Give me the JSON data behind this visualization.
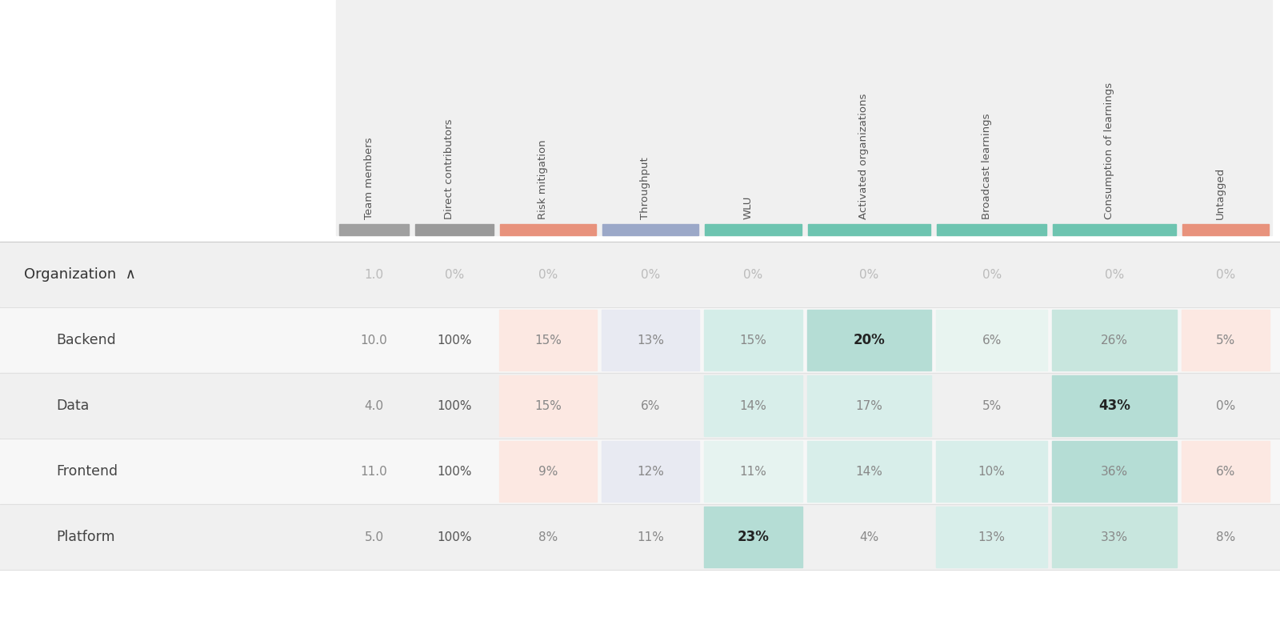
{
  "col_headers": [
    "Team members",
    "Direct contributors",
    "Risk mitigation",
    "Throughput",
    "WLU",
    "Activated organizations",
    "Broadcast learnings",
    "Consumption of learnings",
    "Untagged"
  ],
  "col_indicator_colors": [
    "#a0a0a0",
    "#9a9a9a",
    "#e8927c",
    "#9ba8c8",
    "#6dc4b0",
    "#6dc4b0",
    "#6dc4b0",
    "#6dc4b0",
    "#e8927c"
  ],
  "row_labels": [
    "Organization  ∧",
    "Backend",
    "Data",
    "Frontend",
    "Platform"
  ],
  "row_indents": [
    0,
    1,
    1,
    1,
    1
  ],
  "data": [
    [
      "1.0",
      "0%",
      "0%",
      "0%",
      "0%",
      "0%",
      "0%",
      "0%",
      "0%"
    ],
    [
      "10.0",
      "100%",
      "15%",
      "13%",
      "15%",
      "20%",
      "6%",
      "26%",
      "5%"
    ],
    [
      "4.0",
      "100%",
      "15%",
      "6%",
      "14%",
      "17%",
      "5%",
      "43%",
      "0%"
    ],
    [
      "11.0",
      "100%",
      "9%",
      "12%",
      "11%",
      "14%",
      "10%",
      "36%",
      "6%"
    ],
    [
      "5.0",
      "100%",
      "8%",
      "11%",
      "23%",
      "4%",
      "13%",
      "33%",
      "8%"
    ]
  ],
  "cell_colors": [
    [
      null,
      null,
      null,
      null,
      null,
      null,
      null,
      null,
      null
    ],
    [
      null,
      null,
      "#fce8e2",
      "#e8eaf2",
      "#d4ede8",
      "#b5ddd5",
      "#e8f4f0",
      "#c8e6de",
      "#fce8e2"
    ],
    [
      null,
      null,
      "#fce8e2",
      null,
      "#d8eeea",
      "#d8eeea",
      null,
      "#b5ddd5",
      null
    ],
    [
      null,
      null,
      "#fce8e2",
      "#e8eaf2",
      "#e6f3f0",
      "#d8eeea",
      "#d8eeea",
      "#b5ddd5",
      "#fce8e2"
    ],
    [
      null,
      null,
      null,
      null,
      "#b5ddd5",
      null,
      "#d8eeea",
      "#c8e6de",
      null
    ]
  ],
  "bold_cells": [
    [
      false,
      false,
      false,
      false,
      false,
      false,
      false,
      false,
      false
    ],
    [
      false,
      false,
      false,
      false,
      false,
      true,
      false,
      false,
      false
    ],
    [
      false,
      false,
      false,
      false,
      false,
      false,
      false,
      true,
      false
    ],
    [
      false,
      false,
      false,
      false,
      false,
      false,
      false,
      false,
      false
    ],
    [
      false,
      false,
      false,
      false,
      true,
      false,
      false,
      false,
      false
    ]
  ],
  "bg_color": "#ffffff",
  "row_bg_colors": [
    "#f0f0f0",
    "#f7f7f7",
    "#f0f0f0",
    "#f7f7f7",
    "#f0f0f0"
  ],
  "header_bg": "#f0f0f0",
  "figsize": [
    16.0,
    7.76
  ],
  "dpi": 100
}
